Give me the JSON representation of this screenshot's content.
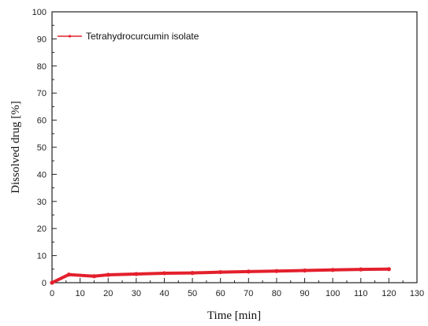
{
  "chart_data": {
    "type": "line",
    "xlabel": "Time [min]",
    "ylabel": "Dissolved drug [%]",
    "xlim": [
      0,
      130
    ],
    "ylim": [
      0,
      100
    ],
    "xticks": [
      "0",
      "10",
      "20",
      "30",
      "40",
      "50",
      "60",
      "70",
      "80",
      "90",
      "100",
      "110",
      "120",
      "130"
    ],
    "yticks": [
      "0",
      "10",
      "20",
      "30",
      "40",
      "50",
      "60",
      "70",
      "80",
      "90",
      "100"
    ],
    "grid": false,
    "legend_position": "top-left",
    "series": [
      {
        "name": "Tetrahydrocurcumin isolate",
        "color": "#e3202c",
        "x": [
          0,
          6,
          15,
          20,
          30,
          40,
          50,
          60,
          70,
          80,
          90,
          100,
          110,
          120
        ],
        "y": [
          0,
          3.0,
          2.4,
          2.9,
          3.2,
          3.5,
          3.6,
          3.9,
          4.1,
          4.3,
          4.5,
          4.7,
          4.9,
          5.0
        ]
      }
    ]
  }
}
